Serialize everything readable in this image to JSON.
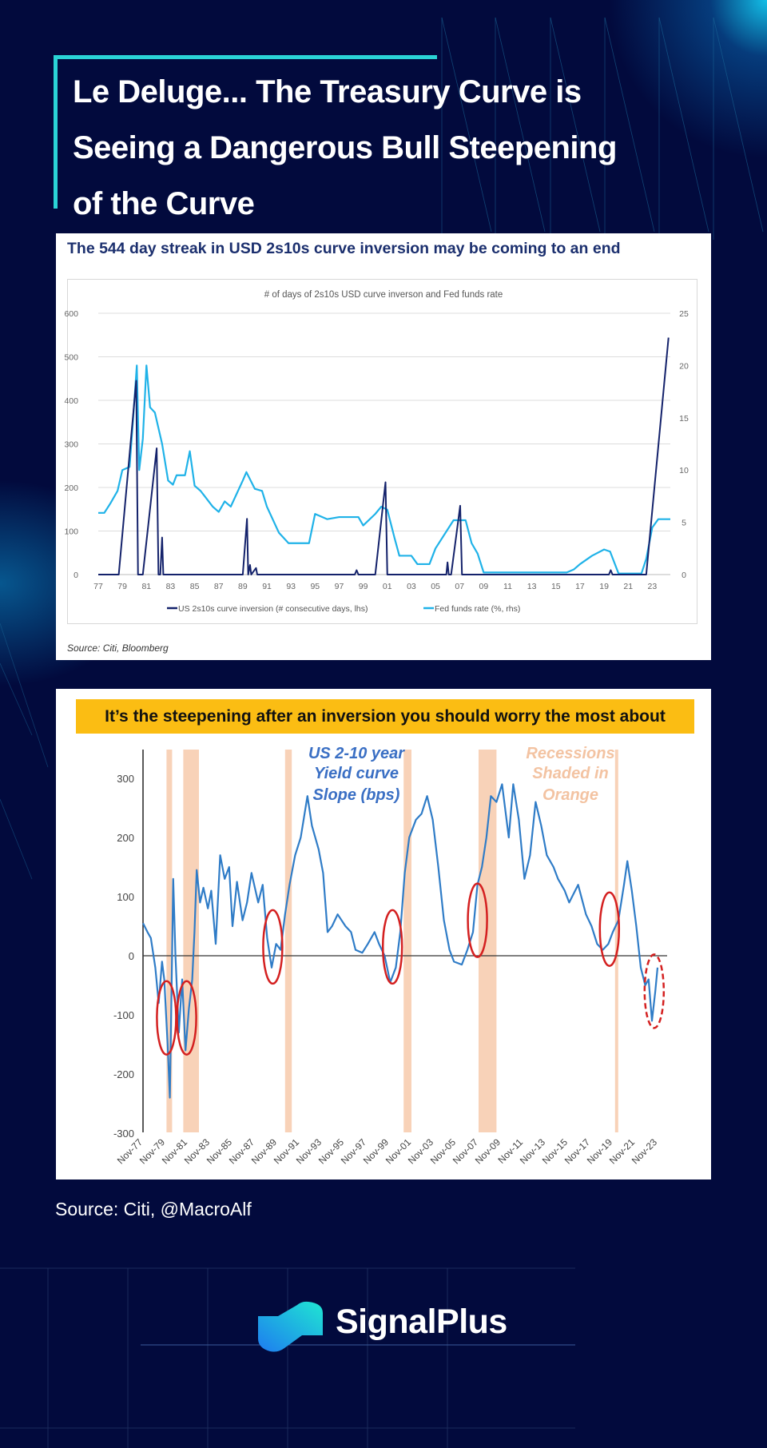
{
  "title_lines": [
    "Le Deluge... The Treasury Curve is",
    "Seeing a Dangerous Bull Steepening",
    "of the Curve"
  ],
  "source_note": "Source: Citi, @MacroAlf",
  "logo": {
    "text": "SignalPlus",
    "icon": "signalplus-logo-icon"
  },
  "colors": {
    "background": "#020a3d",
    "accent": "#2ad4d6",
    "navy_series": "#14226b",
    "light_series": "#1fb2e8",
    "slope_series": "#2f7cc7",
    "recession": "#f8d2b8",
    "circle": "#d42020",
    "banner": "#fbbd13"
  },
  "chart_data": [
    {
      "type": "line",
      "headline": "The 544 day streak in USD 2s10s curve inversion may be coming to an end",
      "title": "# of days of 2s10s USD curve inverson and Fed funds rate",
      "source": "Source: Citi, Bloomberg",
      "xlabel": "",
      "ylabel": "",
      "xlim": [
        1977,
        2024.5
      ],
      "x_tick_labels": [
        "77",
        "79",
        "81",
        "83",
        "85",
        "87",
        "89",
        "91",
        "93",
        "95",
        "97",
        "99",
        "01",
        "03",
        "05",
        "07",
        "09",
        "11",
        "13",
        "15",
        "17",
        "19",
        "21",
        "23"
      ],
      "ylim_left": [
        0,
        600
      ],
      "y_ticks_left": [
        "0",
        "100",
        "200",
        "300",
        "400",
        "500",
        "600"
      ],
      "ylim_right": [
        0,
        25
      ],
      "y_ticks_right": [
        "0",
        "5",
        "10",
        "15",
        "20",
        "25"
      ],
      "grid": true,
      "legend": "bottom",
      "series": [
        {
          "name": "US 2s10s curve inversion (# consecutive days, lhs)",
          "axis": "left",
          "points": [
            [
              1977,
              0
            ],
            [
              1978.7,
              0
            ],
            [
              1980.15,
              445
            ],
            [
              1980.3,
              0
            ],
            [
              1980.7,
              0
            ],
            [
              1981.85,
              290
            ],
            [
              1982.0,
              0
            ],
            [
              1982.15,
              0
            ],
            [
              1982.3,
              85
            ],
            [
              1982.4,
              0
            ],
            [
              1989.0,
              0
            ],
            [
              1989.35,
              128
            ],
            [
              1989.45,
              0
            ],
            [
              1989.6,
              22
            ],
            [
              1989.7,
              0
            ],
            [
              1990.1,
              15
            ],
            [
              1990.2,
              0
            ],
            [
              1998.3,
              0
            ],
            [
              1998.45,
              10
            ],
            [
              1998.6,
              0
            ],
            [
              2000.0,
              0
            ],
            [
              2000.85,
              212
            ],
            [
              2001.0,
              0
            ],
            [
              2005.9,
              0
            ],
            [
              2006.0,
              28
            ],
            [
              2006.1,
              0
            ],
            [
              2006.3,
              0
            ],
            [
              2007.05,
              158
            ],
            [
              2007.2,
              0
            ],
            [
              2019.4,
              0
            ],
            [
              2019.55,
              10
            ],
            [
              2019.7,
              0
            ],
            [
              2022.5,
              0
            ],
            [
              2024.35,
              544
            ]
          ]
        },
        {
          "name": "Fed funds rate (%, rhs)",
          "axis": "right",
          "points": [
            [
              1977,
              5.9
            ],
            [
              1977.5,
              5.9
            ],
            [
              1978,
              6.8
            ],
            [
              1978.6,
              8
            ],
            [
              1979,
              10
            ],
            [
              1979.6,
              10.3
            ],
            [
              1979.9,
              15
            ],
            [
              1980.2,
              20
            ],
            [
              1980.4,
              10
            ],
            [
              1980.7,
              13
            ],
            [
              1981,
              20
            ],
            [
              1981.3,
              16
            ],
            [
              1981.7,
              15.5
            ],
            [
              1982,
              14
            ],
            [
              1982.3,
              12.5
            ],
            [
              1982.8,
              9
            ],
            [
              1983.2,
              8.6
            ],
            [
              1983.5,
              9.5
            ],
            [
              1984.2,
              9.5
            ],
            [
              1984.6,
              11.8
            ],
            [
              1985,
              8.5
            ],
            [
              1985.5,
              8
            ],
            [
              1986.5,
              6.5
            ],
            [
              1987,
              6
            ],
            [
              1987.5,
              7
            ],
            [
              1988,
              6.5
            ],
            [
              1989,
              9
            ],
            [
              1989.3,
              9.8
            ],
            [
              1990,
              8.2
            ],
            [
              1990.6,
              8
            ],
            [
              1991,
              6.5
            ],
            [
              1992,
              4
            ],
            [
              1992.8,
              3
            ],
            [
              1994.5,
              3
            ],
            [
              1995,
              5.8
            ],
            [
              1996,
              5.3
            ],
            [
              1997,
              5.5
            ],
            [
              1998.6,
              5.5
            ],
            [
              1999,
              4.7
            ],
            [
              2000,
              5.8
            ],
            [
              2000.5,
              6.5
            ],
            [
              2001,
              6.2
            ],
            [
              2001.6,
              3.5
            ],
            [
              2002,
              1.8
            ],
            [
              2003,
              1.8
            ],
            [
              2003.5,
              1
            ],
            [
              2004.5,
              1
            ],
            [
              2005,
              2.5
            ],
            [
              2006.5,
              5.2
            ],
            [
              2007.5,
              5.2
            ],
            [
              2008,
              3
            ],
            [
              2008.5,
              2
            ],
            [
              2009,
              0.2
            ],
            [
              2015.9,
              0.2
            ],
            [
              2016.5,
              0.5
            ],
            [
              2017,
              1
            ],
            [
              2018,
              1.8
            ],
            [
              2019,
              2.4
            ],
            [
              2019.5,
              2.2
            ],
            [
              2020.2,
              0.1
            ],
            [
              2022.1,
              0.1
            ],
            [
              2022.5,
              1.5
            ],
            [
              2023,
              4.5
            ],
            [
              2023.5,
              5.3
            ],
            [
              2024.5,
              5.3
            ]
          ]
        }
      ]
    },
    {
      "type": "line",
      "headline": "It’s the steepening after an inversion you should worry the most about",
      "annotation_series": [
        "US 2-10 year",
        "Yield curve",
        "Slope (bps)"
      ],
      "annotation_recessions": [
        "Recessions",
        "Shaded in",
        "Orange"
      ],
      "xlim": [
        1977.9,
        2024.2
      ],
      "x_tick_labels": [
        "Nov-77",
        "Nov-79",
        "Nov-81",
        "Nov-83",
        "Nov-85",
        "Nov-87",
        "Nov-89",
        "Nov-91",
        "Nov-93",
        "Nov-95",
        "Nov-97",
        "Nov-99",
        "Nov-01",
        "Nov-03",
        "Nov-05",
        "Nov-07",
        "Nov-09",
        "Nov-11",
        "Nov-13",
        "Nov-15",
        "Nov-17",
        "Nov-19",
        "Nov-21",
        "Nov-23"
      ],
      "ylim": [
        -300,
        350
      ],
      "y_ticks": [
        "300",
        "200",
        "100",
        "0",
        "-100",
        "-200",
        "-300"
      ],
      "grid": false,
      "recessions": [
        [
          1980.0,
          1980.5
        ],
        [
          1981.5,
          1982.9
        ],
        [
          1990.6,
          1991.2
        ],
        [
          2001.2,
          2001.9
        ],
        [
          2007.9,
          2009.5
        ],
        [
          2020.1,
          2020.3
        ]
      ],
      "highlight_circles": [
        {
          "x": 1980.0,
          "y": -105,
          "dashed": false
        },
        {
          "x": 1981.8,
          "y": -105,
          "dashed": false
        },
        {
          "x": 1989.5,
          "y": 15,
          "dashed": false
        },
        {
          "x": 2000.2,
          "y": 15,
          "dashed": false
        },
        {
          "x": 2007.8,
          "y": 60,
          "dashed": false
        },
        {
          "x": 2019.6,
          "y": 45,
          "dashed": false
        },
        {
          "x": 2023.6,
          "y": -60,
          "dashed": true
        }
      ],
      "series": [
        {
          "points": [
            [
              1977.9,
              55
            ],
            [
              1978.3,
              40
            ],
            [
              1978.6,
              30
            ],
            [
              1979,
              -20
            ],
            [
              1979.3,
              -80
            ],
            [
              1979.6,
              -10
            ],
            [
              1979.8,
              -40
            ],
            [
              1980.1,
              -150
            ],
            [
              1980.3,
              -240
            ],
            [
              1980.45,
              -60
            ],
            [
              1980.6,
              130
            ],
            [
              1980.8,
              0
            ],
            [
              1981.1,
              -130
            ],
            [
              1981.4,
              -40
            ],
            [
              1981.7,
              -160
            ],
            [
              1982.0,
              -90
            ],
            [
              1982.3,
              -40
            ],
            [
              1982.5,
              40
            ],
            [
              1982.7,
              145
            ],
            [
              1983,
              90
            ],
            [
              1983.3,
              115
            ],
            [
              1983.7,
              80
            ],
            [
              1984.0,
              110
            ],
            [
              1984.4,
              20
            ],
            [
              1984.8,
              170
            ],
            [
              1985.2,
              130
            ],
            [
              1985.6,
              150
            ],
            [
              1985.9,
              50
            ],
            [
              1986.3,
              125
            ],
            [
              1986.8,
              60
            ],
            [
              1987.2,
              90
            ],
            [
              1987.6,
              140
            ],
            [
              1988.2,
              90
            ],
            [
              1988.6,
              120
            ],
            [
              1989,
              30
            ],
            [
              1989.4,
              -20
            ],
            [
              1989.8,
              20
            ],
            [
              1990.2,
              10
            ],
            [
              1990.6,
              70
            ],
            [
              1991,
              120
            ],
            [
              1991.5,
              170
            ],
            [
              1992,
              200
            ],
            [
              1992.6,
              270
            ],
            [
              1993,
              220
            ],
            [
              1993.6,
              180
            ],
            [
              1994,
              140
            ],
            [
              1994.4,
              40
            ],
            [
              1994.8,
              50
            ],
            [
              1995.3,
              70
            ],
            [
              1996,
              50
            ],
            [
              1996.5,
              40
            ],
            [
              1996.9,
              10
            ],
            [
              1997.5,
              5
            ],
            [
              1998,
              20
            ],
            [
              1998.6,
              40
            ],
            [
              1999,
              20
            ],
            [
              1999.5,
              0
            ],
            [
              2000,
              -45
            ],
            [
              2000.5,
              -20
            ],
            [
              2000.9,
              40
            ],
            [
              2001.3,
              140
            ],
            [
              2001.7,
              200
            ],
            [
              2002.3,
              230
            ],
            [
              2002.8,
              240
            ],
            [
              2003.3,
              270
            ],
            [
              2003.8,
              230
            ],
            [
              2004.3,
              150
            ],
            [
              2004.8,
              60
            ],
            [
              2005.3,
              10
            ],
            [
              2005.7,
              -10
            ],
            [
              2006.4,
              -15
            ],
            [
              2006.9,
              10
            ],
            [
              2007.4,
              40
            ],
            [
              2007.8,
              120
            ],
            [
              2008.2,
              150
            ],
            [
              2008.6,
              200
            ],
            [
              2009,
              270
            ],
            [
              2009.5,
              260
            ],
            [
              2010,
              290
            ],
            [
              2010.6,
              200
            ],
            [
              2011,
              290
            ],
            [
              2011.5,
              230
            ],
            [
              2012,
              130
            ],
            [
              2012.5,
              170
            ],
            [
              2013,
              260
            ],
            [
              2013.5,
              220
            ],
            [
              2014,
              170
            ],
            [
              2014.6,
              150
            ],
            [
              2015,
              130
            ],
            [
              2015.6,
              110
            ],
            [
              2016,
              90
            ],
            [
              2016.8,
              120
            ],
            [
              2017.5,
              70
            ],
            [
              2018,
              50
            ],
            [
              2018.5,
              20
            ],
            [
              2019,
              10
            ],
            [
              2019.5,
              20
            ],
            [
              2019.9,
              40
            ],
            [
              2020.4,
              60
            ],
            [
              2020.9,
              120
            ],
            [
              2021.2,
              160
            ],
            [
              2021.6,
              110
            ],
            [
              2022,
              50
            ],
            [
              2022.4,
              -20
            ],
            [
              2022.8,
              -50
            ],
            [
              2023.1,
              -40
            ],
            [
              2023.4,
              -110
            ],
            [
              2023.7,
              -60
            ],
            [
              2023.9,
              -20
            ]
          ]
        }
      ]
    }
  ]
}
